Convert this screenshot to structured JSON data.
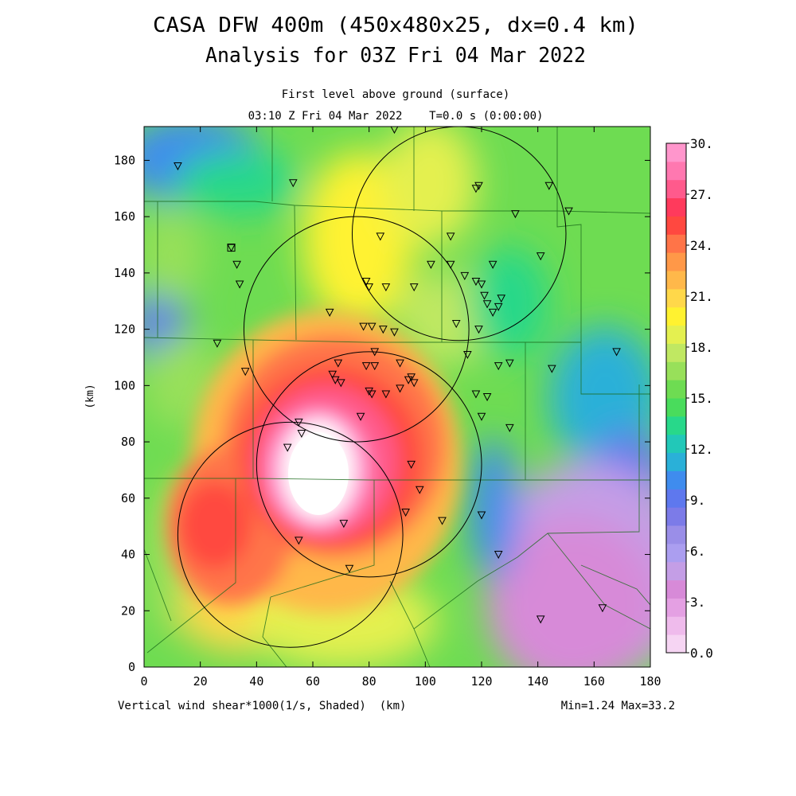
{
  "title_line1": "CASA DFW 400m (450x480x25, dx=0.4 km)",
  "title_line2": "Analysis for 03Z Fri 04 Mar 2022",
  "subtitle_line1": "First level above ground (surface)",
  "subtitle_line2": "03:10 Z Fri 04 Mar 2022    T=0.0 s (0:00:00)",
  "footer_left": "Vertical wind shear*1000(1/s, Shaded)  (km)",
  "footer_right": "Min=1.24 Max=33.2",
  "y_axis_label": "(km)",
  "x_ticks": [
    "0",
    "20",
    "40",
    "60",
    "80",
    "100",
    "120",
    "140",
    "160",
    "180"
  ],
  "y_ticks": [
    "0",
    "20",
    "40",
    "60",
    "80",
    "100",
    "120",
    "140",
    "160",
    "180"
  ],
  "colorbar_labels": [
    "30.",
    "27.",
    "24.",
    "21.",
    "18.",
    "15.",
    "12.",
    "9.",
    "6.",
    "3.",
    "0.0"
  ],
  "chart_data": {
    "type": "heatmap",
    "variable": "Vertical wind shear*1000 (1/s)",
    "x_range_km": [
      0,
      180
    ],
    "y_range_km": [
      0,
      192
    ],
    "value_range": [
      0,
      30
    ],
    "min": 1.24,
    "max": 33.2,
    "colorbar_colors": [
      "#f6d5f3",
      "#efbbec",
      "#e4a0e3",
      "#d78ad8",
      "#c49ee6",
      "#ab9ef0",
      "#9a8ee8",
      "#7c7be8",
      "#5e78ee",
      "#3f8cee",
      "#2ab0d8",
      "#22c8b8",
      "#28d88a",
      "#49dc5c",
      "#6edc52",
      "#98e05a",
      "#c0e862",
      "#e4f050",
      "#fff230",
      "#ffd84a",
      "#ffb84a",
      "#ff9848",
      "#ff7448",
      "#ff4840",
      "#ff3a5c",
      "#ff5a8c",
      "#ff78b0",
      "#ff96cc"
    ],
    "radar_rings": [
      {
        "cx": 80,
        "cy": 72,
        "r": 40
      },
      {
        "cx": 75.5,
        "cy": 120,
        "r": 40
      },
      {
        "cx": 112,
        "cy": 154,
        "r": 38
      },
      {
        "cx": 52,
        "cy": 47,
        "r": 40
      }
    ],
    "stations": [
      [
        12,
        178
      ],
      [
        53,
        172
      ],
      [
        89,
        191
      ],
      [
        118,
        170
      ],
      [
        119,
        171
      ],
      [
        132,
        161
      ],
      [
        144,
        171
      ],
      [
        151,
        162
      ],
      [
        31,
        149
      ],
      [
        33,
        143
      ],
      [
        34,
        136
      ],
      [
        26,
        115
      ],
      [
        36,
        105
      ],
      [
        69,
        108
      ],
      [
        78,
        121
      ],
      [
        79,
        137
      ],
      [
        80,
        135
      ],
      [
        81,
        121
      ],
      [
        84,
        153
      ],
      [
        85,
        120
      ],
      [
        86,
        135
      ],
      [
        89,
        119
      ],
      [
        91,
        108
      ],
      [
        94,
        102
      ],
      [
        95,
        103
      ],
      [
        96,
        101
      ],
      [
        82,
        112
      ],
      [
        96,
        135
      ],
      [
        102,
        143
      ],
      [
        109,
        143
      ],
      [
        109,
        153
      ],
      [
        111,
        122
      ],
      [
        114,
        139
      ],
      [
        115,
        111
      ],
      [
        118,
        137
      ],
      [
        119,
        120
      ],
      [
        120,
        136
      ],
      [
        121,
        132
      ],
      [
        122,
        129
      ],
      [
        124,
        143
      ],
      [
        124,
        126
      ],
      [
        126,
        128
      ],
      [
        127,
        131
      ],
      [
        126,
        107
      ],
      [
        130,
        108
      ],
      [
        141,
        146
      ],
      [
        145,
        106
      ],
      [
        168,
        112
      ],
      [
        79,
        107
      ],
      [
        82,
        107
      ],
      [
        80,
        98
      ],
      [
        81,
        97
      ],
      [
        86,
        97
      ],
      [
        91,
        99
      ],
      [
        68,
        102
      ],
      [
        67,
        104
      ],
      [
        70,
        101
      ],
      [
        77,
        89
      ],
      [
        55,
        87
      ],
      [
        56,
        83
      ],
      [
        51,
        78
      ],
      [
        95,
        72
      ],
      [
        98,
        63
      ],
      [
        93,
        55
      ],
      [
        120,
        54
      ],
      [
        106,
        52
      ],
      [
        71,
        51
      ],
      [
        55,
        45
      ],
      [
        73,
        35
      ],
      [
        126,
        40
      ],
      [
        141,
        17
      ],
      [
        163,
        21
      ],
      [
        120,
        89
      ],
      [
        118,
        97
      ],
      [
        122,
        96
      ],
      [
        130,
        85
      ],
      [
        66,
        126
      ]
    ],
    "squares": [
      [
        31,
        149
      ]
    ]
  },
  "colors": {
    "background": "#ffffff",
    "ink": "#000000"
  }
}
